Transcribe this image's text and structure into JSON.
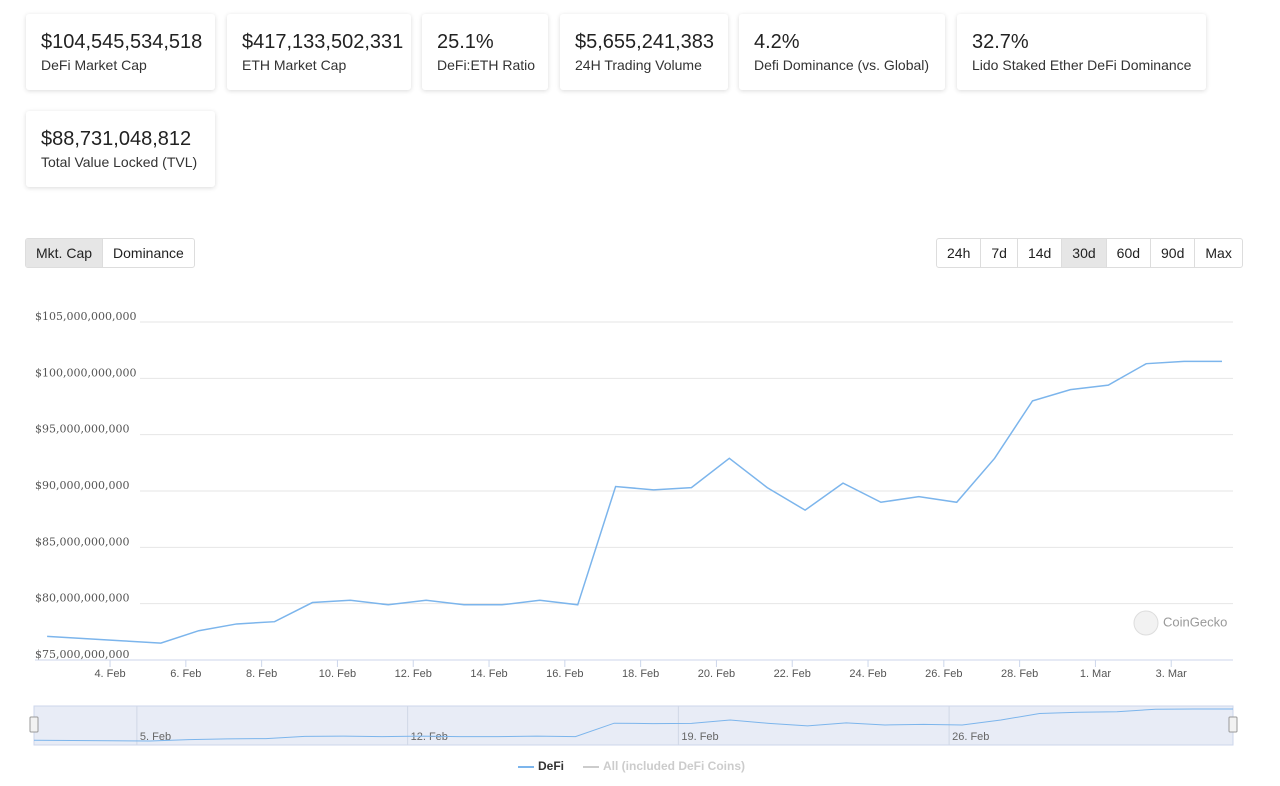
{
  "stats": [
    {
      "value": "$104,545,534,518",
      "label": "DeFi Market Cap"
    },
    {
      "value": "$417,133,502,331",
      "label": "ETH Market Cap"
    },
    {
      "value": "25.1%",
      "label": "DeFi:ETH Ratio"
    },
    {
      "value": "$5,655,241,383",
      "label": "24H Trading Volume"
    },
    {
      "value": "4.2%",
      "label": "Defi Dominance (vs. Global)"
    },
    {
      "value": "32.7%",
      "label": "Lido Staked Ether DeFi Dominance"
    },
    {
      "value": "$88,731,048,812",
      "label": "Total Value Locked (TVL)"
    }
  ],
  "tabs": [
    "Mkt. Cap",
    "Dominance"
  ],
  "active_tab": "Mkt. Cap",
  "ranges": [
    "24h",
    "7d",
    "14d",
    "30d",
    "60d",
    "90d",
    "Max"
  ],
  "active_range": "30d",
  "watermark": "CoinGecko",
  "chart_data": {
    "type": "line",
    "x": [
      2.34,
      3.34,
      4.34,
      5.34,
      6.34,
      7.34,
      8.34,
      9.34,
      10.34,
      11.34,
      12.34,
      13.34,
      14.34,
      15.34,
      16.34,
      17.34,
      18.34,
      19.34,
      20.34,
      21.34,
      22.34,
      23.34,
      24.34,
      25.34,
      26.34,
      27.34,
      28.34,
      29.34,
      30.34,
      31.34,
      32.34,
      33.34
    ],
    "series": [
      {
        "name": "DeFi",
        "color": "#7cb5ec",
        "values": [
          77100000000,
          76900000000,
          76700000000,
          76500000000,
          77600000000,
          78200000000,
          78400000000,
          80100000000,
          80300000000,
          79900000000,
          80300000000,
          79900000000,
          79900000000,
          80300000000,
          79900000000,
          90400000000,
          90100000000,
          90300000000,
          92900000000,
          90300000000,
          88300000000,
          90700000000,
          89000000000,
          89500000000,
          89000000000,
          92900000000,
          98000000000,
          99000000000,
          99400000000,
          101300000000,
          101500000000,
          101500000000
        ]
      },
      {
        "name": "All (included DeFi Coins)",
        "color": "#cccccc",
        "visible": false
      }
    ],
    "xlim": [
      2.02,
      33.63
    ],
    "xticks": [
      {
        "value": 4,
        "label": "4. Feb"
      },
      {
        "value": 6,
        "label": "6. Feb"
      },
      {
        "value": 8,
        "label": "8. Feb"
      },
      {
        "value": 10,
        "label": "10. Feb"
      },
      {
        "value": 12,
        "label": "12. Feb"
      },
      {
        "value": 14,
        "label": "14. Feb"
      },
      {
        "value": 16,
        "label": "16. Feb"
      },
      {
        "value": 18,
        "label": "18. Feb"
      },
      {
        "value": 20,
        "label": "20. Feb"
      },
      {
        "value": 22,
        "label": "22. Feb"
      },
      {
        "value": 24,
        "label": "24. Feb"
      },
      {
        "value": 26,
        "label": "26. Feb"
      },
      {
        "value": 28,
        "label": "28. Feb"
      },
      {
        "value": 30,
        "label": "1. Mar"
      },
      {
        "value": 32,
        "label": "3. Mar"
      }
    ],
    "ylim": [
      75000000000,
      105000000000
    ],
    "yticks": [
      {
        "value": 75000000000,
        "label": "$75,000,000,000"
      },
      {
        "value": 80000000000,
        "label": "$80,000,000,000"
      },
      {
        "value": 85000000000,
        "label": "$85,000,000,000"
      },
      {
        "value": 90000000000,
        "label": "$90,000,000,000"
      },
      {
        "value": 95000000000,
        "label": "$95,000,000,000"
      },
      {
        "value": 100000000000,
        "label": "$100,000,000,000"
      },
      {
        "value": 105000000000,
        "label": "$105,000,000,000"
      }
    ],
    "grid": true,
    "navigator_ticks": [
      {
        "value": 5,
        "label": "5. Feb"
      },
      {
        "value": 12,
        "label": "12. Feb"
      },
      {
        "value": 19,
        "label": "19. Feb"
      },
      {
        "value": 26,
        "label": "26. Feb"
      }
    ]
  }
}
